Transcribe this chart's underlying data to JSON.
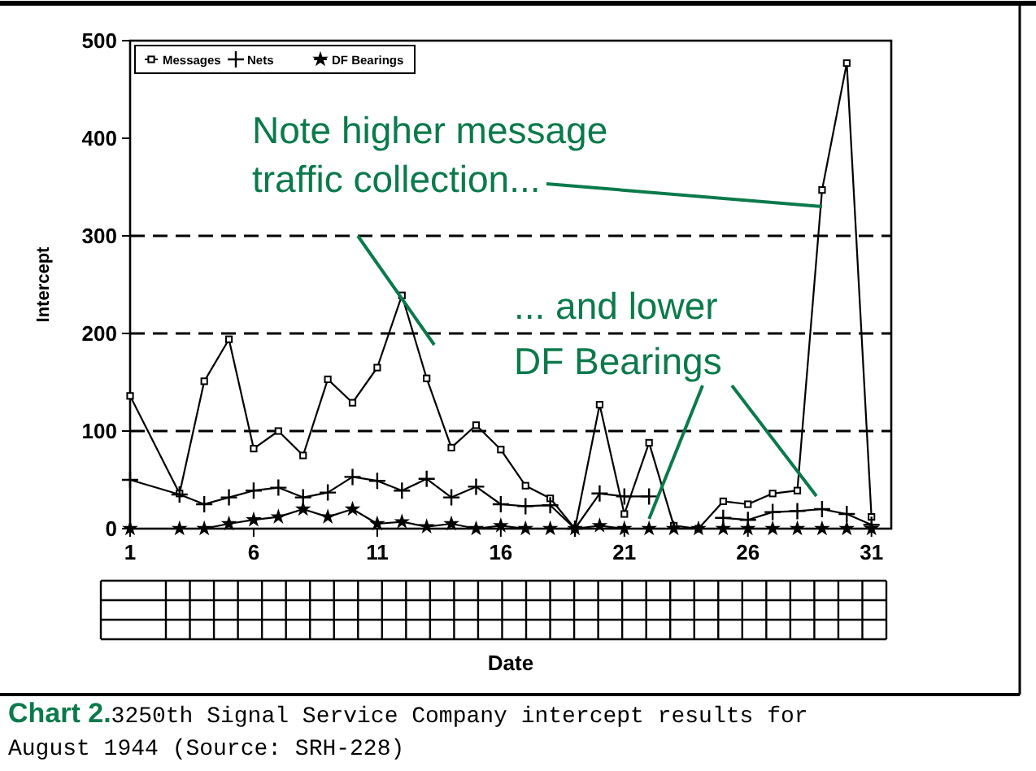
{
  "chart_data": {
    "type": "line",
    "xlabel": "Date",
    "ylabel": "Intercept",
    "x": [
      1,
      3,
      4,
      5,
      6,
      7,
      8,
      9,
      10,
      11,
      12,
      13,
      14,
      15,
      16,
      17,
      18,
      19,
      20,
      21,
      22,
      23,
      24,
      25,
      26,
      27,
      28,
      29,
      30,
      31
    ],
    "series": [
      {
        "name": "Messages",
        "color": "#000000",
        "marker": "square",
        "values": [
          136,
          36,
          151,
          194,
          82,
          100,
          75,
          153,
          129,
          165,
          239,
          154,
          83,
          106,
          81,
          44,
          31,
          0,
          127,
          15,
          88,
          3,
          0,
          28,
          25,
          36,
          39,
          347,
          477,
          12
        ]
      },
      {
        "name": "Nets",
        "color": "#000000",
        "marker": "cross",
        "values": [
          50,
          35,
          25,
          32,
          39,
          42,
          32,
          37,
          53,
          49,
          39,
          51,
          32,
          43,
          25,
          23,
          24,
          0,
          36,
          33,
          33,
          null,
          null,
          11,
          9,
          17,
          18,
          20,
          15,
          4
        ]
      },
      {
        "name": "DF Bearings",
        "color": "#000000",
        "marker": "star",
        "values": [
          0,
          0,
          0,
          5,
          9,
          12,
          20,
          12,
          20,
          5,
          7,
          2,
          5,
          0,
          3,
          0,
          0,
          0,
          3,
          0,
          0,
          0,
          0,
          0,
          0,
          0,
          0,
          0,
          0,
          0
        ]
      }
    ],
    "xlim": [
      1,
      31.8
    ],
    "xticks": [
      1,
      6,
      11,
      16,
      21,
      26,
      31
    ],
    "ylim": [
      0,
      500
    ],
    "yticks": [
      0,
      100,
      200,
      300,
      400,
      500
    ],
    "ref_lines": [
      {
        "axis": "y",
        "value": 100,
        "line_style": "dashed"
      },
      {
        "axis": "y",
        "value": 200,
        "line_style": "dashed"
      },
      {
        "axis": "y",
        "value": 300,
        "line_style": "dashed"
      }
    ],
    "legend": "top left",
    "annotations": [
      {
        "text": "Note higher message traffic collection...",
        "x": 29,
        "y": 330
      },
      {
        "text": "... and lower DF Bearings",
        "x": 22,
        "y": 10
      },
      "Chart 2.",
      "3250th Signal Service Company intercept results for August 1944 (Source: SRH-228)"
    ]
  }
}
